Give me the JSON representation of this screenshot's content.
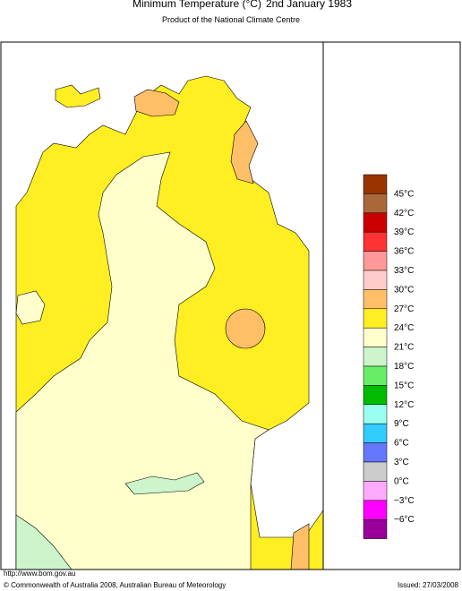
{
  "header": {
    "title": "Minimum Temperature (°C)",
    "date": "2nd January 1983",
    "subtitle": "Product of the National Climate Centre"
  },
  "legend": {
    "colors": [
      "#993300",
      "#a8683a",
      "#cc0000",
      "#ff3333",
      "#ff9999",
      "#ffcccc",
      "#ffbf66",
      "#ffee22",
      "#ffffcc",
      "#ccf5cc",
      "#66ee66",
      "#00bb00",
      "#99ffee",
      "#33ccff",
      "#6677ff",
      "#cccccc",
      "#ffaaff",
      "#ff00ff",
      "#990099"
    ],
    "labels": [
      "45°C",
      "42°C",
      "39°C",
      "36°C",
      "33°C",
      "30°C",
      "27°C",
      "24°C",
      "21°C",
      "18°C",
      "15°C",
      "12°C",
      "9°C",
      "6°C",
      "3°C",
      "0°C",
      "−3°C",
      "−6°C"
    ]
  },
  "footer": {
    "url": "http://www.bom.gov.au",
    "copyright": "© Commonwealth of Australia 2008, Australian Bureau of Meteorology",
    "issued": "Issued: 27/03/2008"
  }
}
